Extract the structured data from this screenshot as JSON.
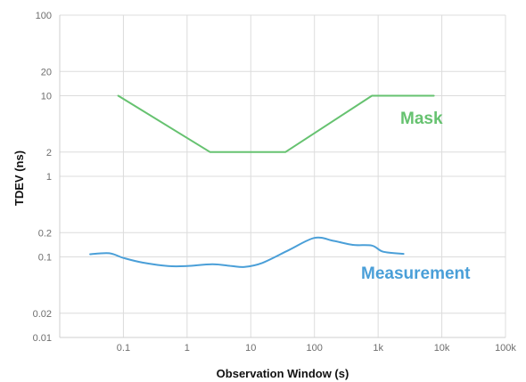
{
  "chart_data": {
    "type": "line",
    "xlabel": "Observation Window (s)",
    "ylabel": "TDEV (ns)",
    "xscale": "log",
    "yscale": "log",
    "xlim": [
      0.01,
      100000
    ],
    "ylim": [
      0.01,
      100
    ],
    "grid": true,
    "x_ticks": [
      {
        "value": 0.1,
        "label": "0.1"
      },
      {
        "value": 1,
        "label": "1"
      },
      {
        "value": 10,
        "label": "10"
      },
      {
        "value": 100,
        "label": "100"
      },
      {
        "value": 1000,
        "label": "1k"
      },
      {
        "value": 10000,
        "label": "10k"
      },
      {
        "value": 100000,
        "label": "100k"
      }
    ],
    "y_ticks": [
      {
        "value": 100,
        "label": "100"
      },
      {
        "value": 20,
        "label": "20"
      },
      {
        "value": 10,
        "label": "10"
      },
      {
        "value": 2,
        "label": "2"
      },
      {
        "value": 1,
        "label": "1"
      },
      {
        "value": 0.2,
        "label": "0.2"
      },
      {
        "value": 0.1,
        "label": "0.1"
      },
      {
        "value": 0.02,
        "label": "0.02"
      },
      {
        "value": 0.01,
        "label": "0.01"
      }
    ],
    "series": [
      {
        "name": "Mask",
        "color": "#66c270",
        "x": [
          0.083,
          2.3,
          35,
          800,
          7500
        ],
        "y": [
          10,
          2,
          2,
          10,
          10
        ]
      },
      {
        "name": "Measurement",
        "color": "#4a9fd8",
        "x": [
          0.03,
          0.06,
          0.1,
          0.2,
          0.5,
          1,
          2.5,
          5,
          8,
          15,
          40,
          100,
          200,
          400,
          800,
          1200,
          2500
        ],
        "y": [
          0.108,
          0.111,
          0.097,
          0.085,
          0.077,
          0.077,
          0.081,
          0.077,
          0.075,
          0.084,
          0.122,
          0.172,
          0.158,
          0.141,
          0.138,
          0.116,
          0.109
        ]
      }
    ]
  }
}
